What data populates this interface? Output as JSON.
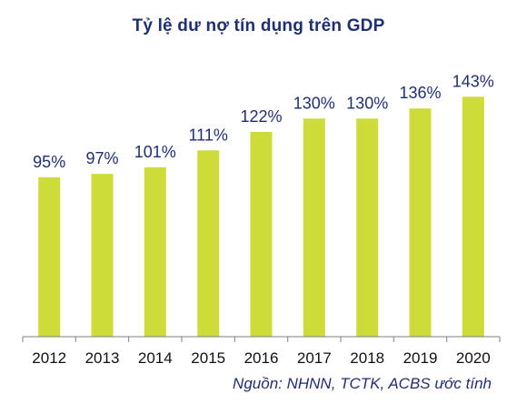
{
  "chart_data": {
    "type": "bar",
    "title": "Tỷ lệ dư nợ tín dụng trên GDP",
    "xlabel": "",
    "ylabel": "",
    "categories": [
      "2012",
      "2013",
      "2014",
      "2015",
      "2016",
      "2017",
      "2018",
      "2019",
      "2020"
    ],
    "values": [
      95,
      97,
      101,
      111,
      122,
      130,
      130,
      136,
      143
    ],
    "value_labels": [
      "95%",
      "97%",
      "101%",
      "111%",
      "122%",
      "130%",
      "130%",
      "136%",
      "143%"
    ],
    "ylim": [
      0,
      150
    ],
    "grid": false,
    "legend": "none",
    "bar_color": "#cddc39",
    "label_color": "#1f2f73",
    "axis_color": "#7f7f7f"
  },
  "source_note": "Nguồn: NHNN, TCTK, ACBS ước tính"
}
